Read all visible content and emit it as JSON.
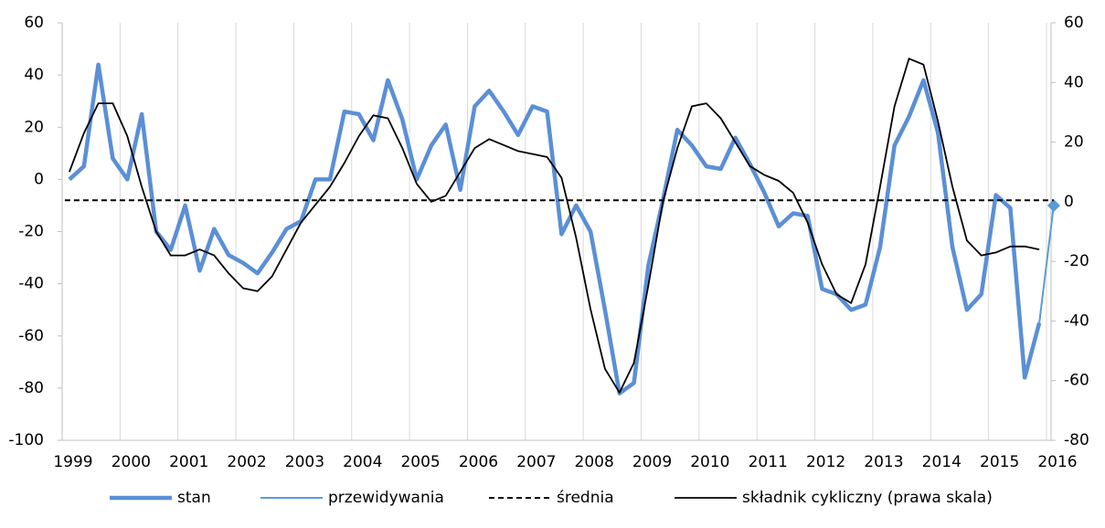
{
  "chart_data": {
    "type": "line",
    "x": [
      1999.125,
      1999.375,
      1999.625,
      1999.875,
      2000.125,
      2000.375,
      2000.625,
      2000.875,
      2001.125,
      2001.375,
      2001.625,
      2001.875,
      2002.125,
      2002.375,
      2002.625,
      2002.875,
      2003.125,
      2003.375,
      2003.625,
      2003.875,
      2004.125,
      2004.375,
      2004.625,
      2004.875,
      2005.125,
      2005.375,
      2005.625,
      2005.875,
      2006.125,
      2006.375,
      2006.625,
      2006.875,
      2007.125,
      2007.375,
      2007.625,
      2007.875,
      2008.125,
      2008.375,
      2008.625,
      2008.875,
      2009.125,
      2009.375,
      2009.625,
      2009.875,
      2010.125,
      2010.375,
      2010.625,
      2010.875,
      2011.125,
      2011.375,
      2011.625,
      2011.875,
      2012.125,
      2012.375,
      2012.625,
      2012.875,
      2013.125,
      2013.375,
      2013.625,
      2013.875,
      2014.125,
      2014.375,
      2014.625,
      2014.875,
      2015.125,
      2015.375,
      2015.625,
      2015.875,
      2016.125
    ],
    "series": [
      {
        "name": "stan",
        "color": "#5b8fd6",
        "width": 4.5,
        "values": [
          0,
          5,
          44,
          8,
          0,
          25,
          -20,
          -27,
          -10,
          -35,
          -19,
          -29,
          -32,
          -36,
          -28,
          -19,
          -16,
          0,
          0,
          26,
          25,
          15,
          38,
          23,
          0,
          13,
          21,
          -4,
          28,
          34,
          26,
          17,
          28,
          26,
          -21,
          -10,
          -20,
          -50,
          -82,
          -78,
          -33,
          -8,
          19,
          13,
          5,
          4,
          16,
          6,
          -5,
          -18,
          -13,
          -14,
          -42,
          -44,
          -50,
          -48,
          -26,
          13,
          24,
          38,
          18,
          -26,
          -50,
          -44,
          -6,
          -11,
          -76,
          -55,
          null
        ]
      },
      {
        "name": "przewidywania",
        "color": "#5b9bd5",
        "width": 2,
        "marker": "diamond",
        "values": [
          null,
          null,
          null,
          null,
          null,
          null,
          null,
          null,
          null,
          null,
          null,
          null,
          null,
          null,
          null,
          null,
          null,
          null,
          null,
          null,
          null,
          null,
          null,
          null,
          null,
          null,
          null,
          null,
          null,
          null,
          null,
          null,
          null,
          null,
          null,
          null,
          null,
          null,
          null,
          null,
          null,
          null,
          null,
          null,
          null,
          null,
          null,
          null,
          null,
          null,
          null,
          null,
          null,
          null,
          null,
          null,
          null,
          null,
          null,
          null,
          null,
          null,
          null,
          null,
          null,
          null,
          null,
          -55,
          -10
        ]
      },
      {
        "name": "średnia",
        "color": "#000000",
        "width": 2,
        "dashed": true,
        "value": -8
      },
      {
        "name": "składnik cykliczny (prawa skala)",
        "color": "#000000",
        "width": 1.8,
        "axis": "y2",
        "values": [
          10,
          23,
          33,
          33,
          22,
          5,
          -10,
          -18,
          -18,
          -16,
          -18,
          -24,
          -29,
          -30,
          -25,
          -16,
          -7,
          -1,
          5,
          13,
          22,
          29,
          28,
          18,
          6,
          0,
          2,
          10,
          18,
          21,
          19,
          17,
          16,
          15,
          8,
          -12,
          -36,
          -56,
          -64,
          -54,
          -28,
          0,
          18,
          32,
          33,
          28,
          20,
          12,
          9,
          7,
          3,
          -7,
          -21,
          -31,
          -34,
          -21,
          5,
          32,
          48,
          46,
          27,
          5,
          -13,
          -18,
          -17,
          -15,
          -15,
          -16,
          null
        ]
      }
    ],
    "xlim": [
      1999,
      2016
    ],
    "xticks": [
      1999,
      2000,
      2001,
      2002,
      2003,
      2004,
      2005,
      2006,
      2007,
      2008,
      2009,
      2010,
      2011,
      2012,
      2013,
      2014,
      2015,
      2016
    ],
    "ylim": [
      -100,
      60
    ],
    "yticks": [
      -100,
      -80,
      -60,
      -40,
      -20,
      0,
      20,
      40,
      60
    ],
    "y2lim": [
      -80,
      60
    ],
    "y2ticks": [
      -80,
      -60,
      -40,
      -20,
      0,
      20,
      40,
      60
    ],
    "grid": "x",
    "legend": "bottom"
  }
}
